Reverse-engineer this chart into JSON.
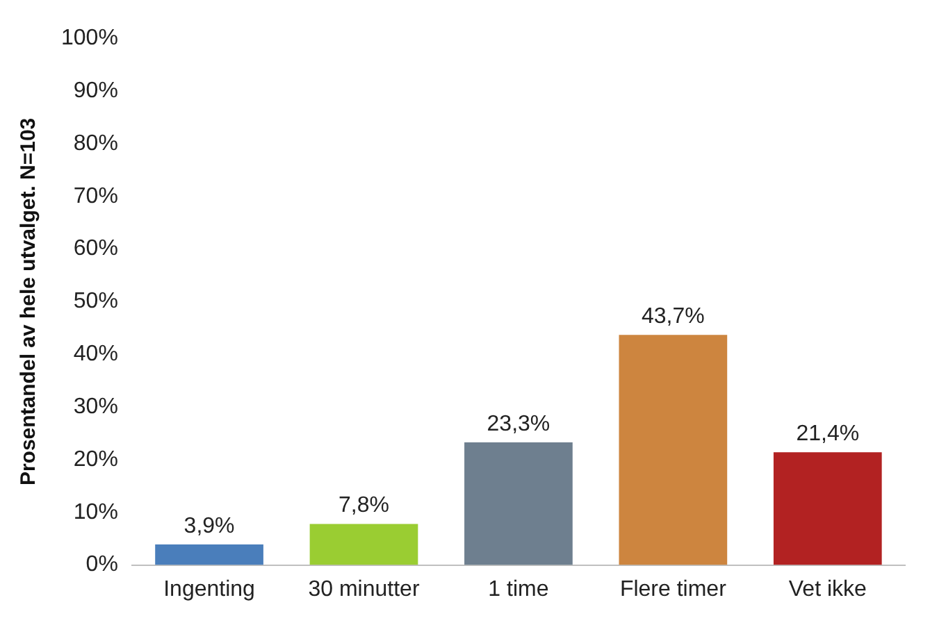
{
  "chart_data": {
    "type": "bar",
    "ylabel": "Prosentandel av hele utvalget. N=103",
    "categories": [
      "Ingenting",
      "30 minutter",
      "1 time",
      "Flere timer",
      "Vet ikke"
    ],
    "values": [
      3.9,
      7.8,
      23.3,
      43.7,
      21.4
    ],
    "colors": [
      "#4a7ebb",
      "#9acd32",
      "#6e7f8f",
      "#cd853f",
      "#b22222"
    ],
    "value_labels": [
      "3,9%",
      "7,8%",
      "23,3%",
      "43,7%",
      "21,4%"
    ],
    "ylim": [
      0,
      100
    ],
    "yticks": [
      {
        "value": 0,
        "label": "0%"
      },
      {
        "value": 10,
        "label": "10%"
      },
      {
        "value": 20,
        "label": "20%"
      },
      {
        "value": 30,
        "label": "30%"
      },
      {
        "value": 40,
        "label": "40%"
      },
      {
        "value": 50,
        "label": "50%"
      },
      {
        "value": 60,
        "label": "60%"
      },
      {
        "value": 70,
        "label": "70%"
      },
      {
        "value": 80,
        "label": "80%"
      },
      {
        "value": 90,
        "label": "90%"
      },
      {
        "value": 100,
        "label": "100%"
      }
    ]
  }
}
